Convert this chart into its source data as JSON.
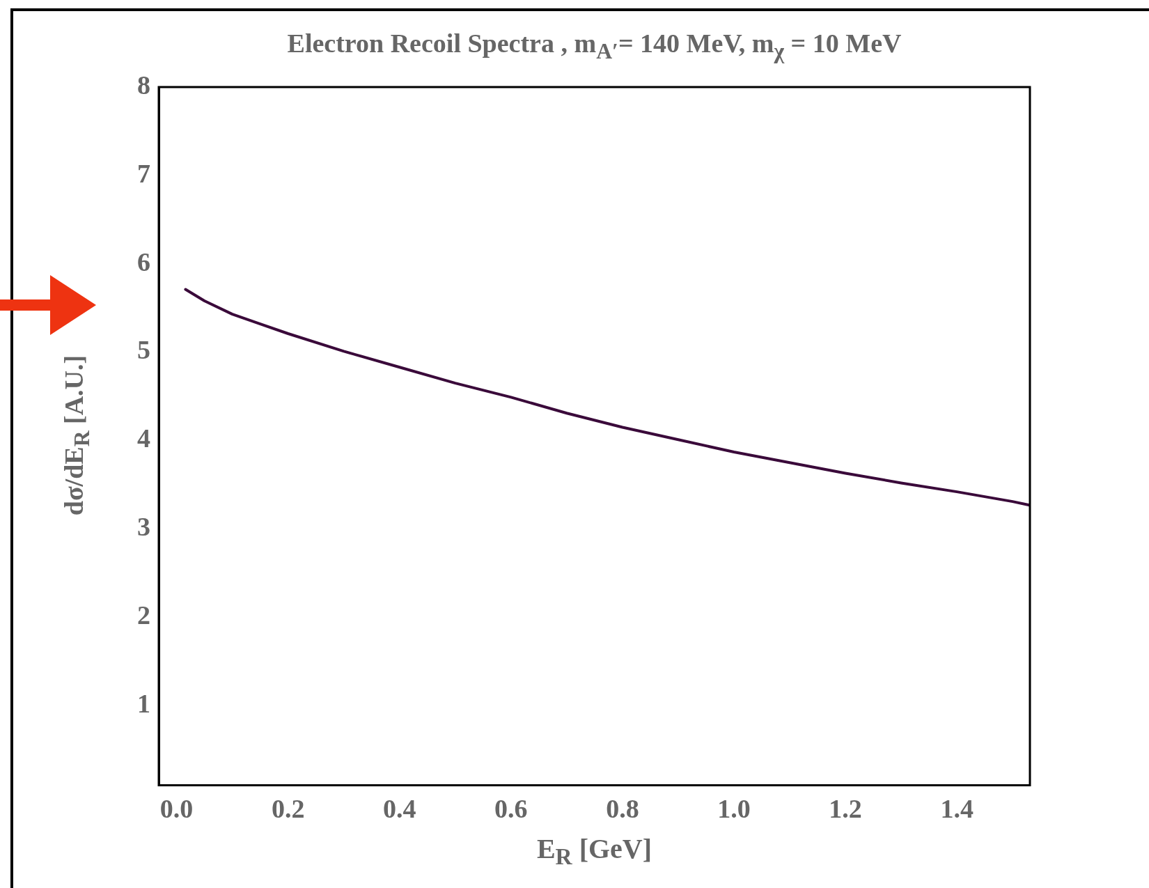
{
  "chart_data": {
    "type": "line",
    "title": "Electron Recoil Spectra , m$_{A′}$= 140 MeV,  m$_{χ}$ = 10 MeV",
    "xlabel": "E$_{R}$ [GeV]",
    "ylabel": "dσ/dE$_{R}$ [A.U.]",
    "series": [
      {
        "color": "#3a0a3a",
        "x": [
          0.016,
          0.05,
          0.1,
          0.15,
          0.2,
          0.3,
          0.4,
          0.5,
          0.6,
          0.7,
          0.8,
          0.9,
          1.0,
          1.1,
          1.2,
          1.3,
          1.4,
          1.5,
          1.53
        ],
        "values": [
          5.71,
          5.58,
          5.43,
          5.32,
          5.21,
          5.01,
          4.83,
          4.65,
          4.49,
          4.31,
          4.15,
          4.01,
          3.87,
          3.75,
          3.63,
          3.52,
          3.42,
          3.31,
          3.27
        ]
      }
    ],
    "xlim": [
      -0.032,
      1.531
    ],
    "ylim": [
      0.1,
      8
    ],
    "xticks": [
      {
        "value": 0,
        "label": "0.0"
      },
      0.2,
      0.4,
      0.6,
      0.8,
      {
        "value": 1,
        "label": "1.0"
      },
      1.2,
      1.4
    ],
    "yticks": [
      1,
      2,
      3,
      4,
      5,
      6,
      7,
      8
    ],
    "marker": "none",
    "line_style": "solid",
    "legend": false
  }
}
